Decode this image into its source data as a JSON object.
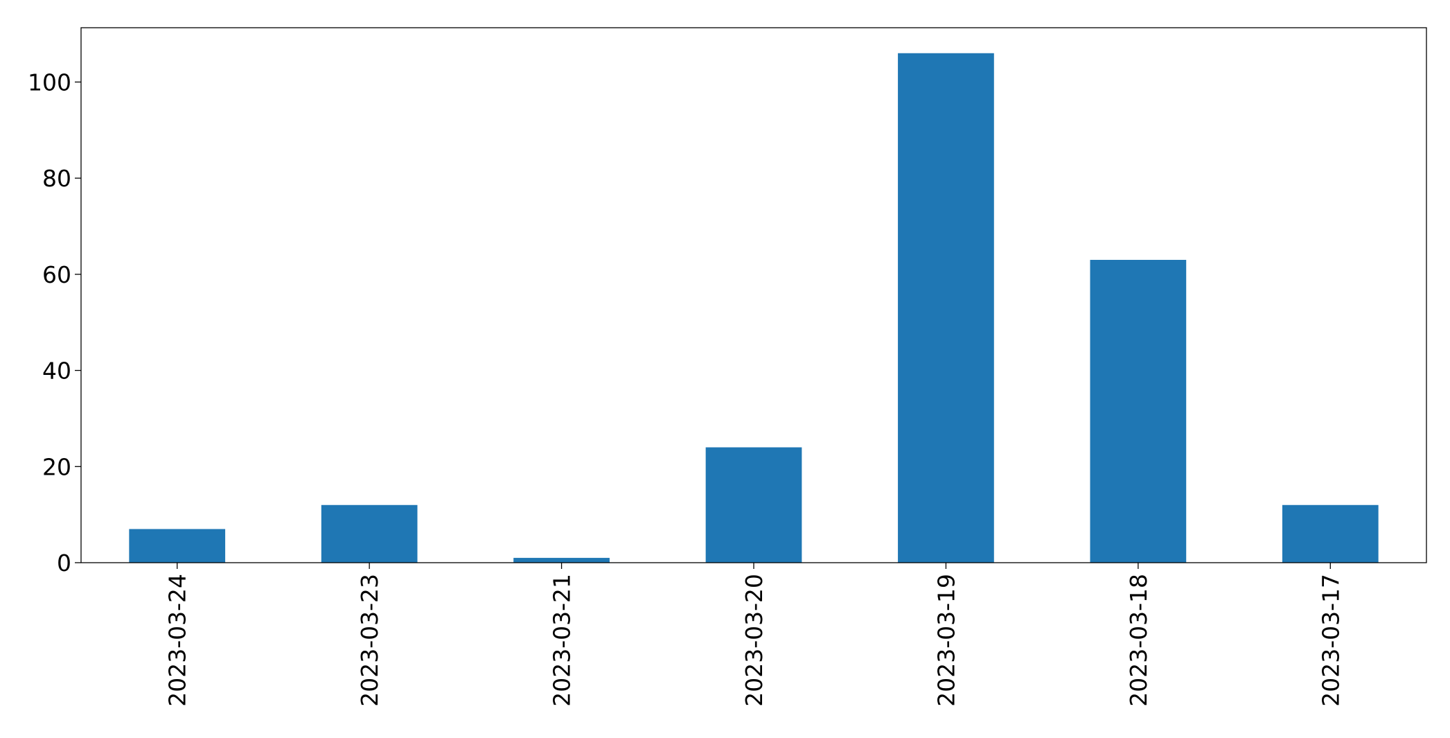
{
  "chart_data": {
    "type": "bar",
    "title": "",
    "xlabel": "",
    "ylabel": "",
    "categories": [
      "2023-03-24",
      "2023-03-23",
      "2023-03-21",
      "2023-03-20",
      "2023-03-19",
      "2023-03-18",
      "2023-03-17"
    ],
    "values": [
      7,
      12,
      1,
      24,
      106,
      63,
      12
    ],
    "ylim": [
      0,
      111.3
    ],
    "yticks": [
      0,
      20,
      40,
      60,
      80,
      100
    ],
    "grid": false,
    "legend": "none",
    "bar_color": "#1f77b4"
  }
}
